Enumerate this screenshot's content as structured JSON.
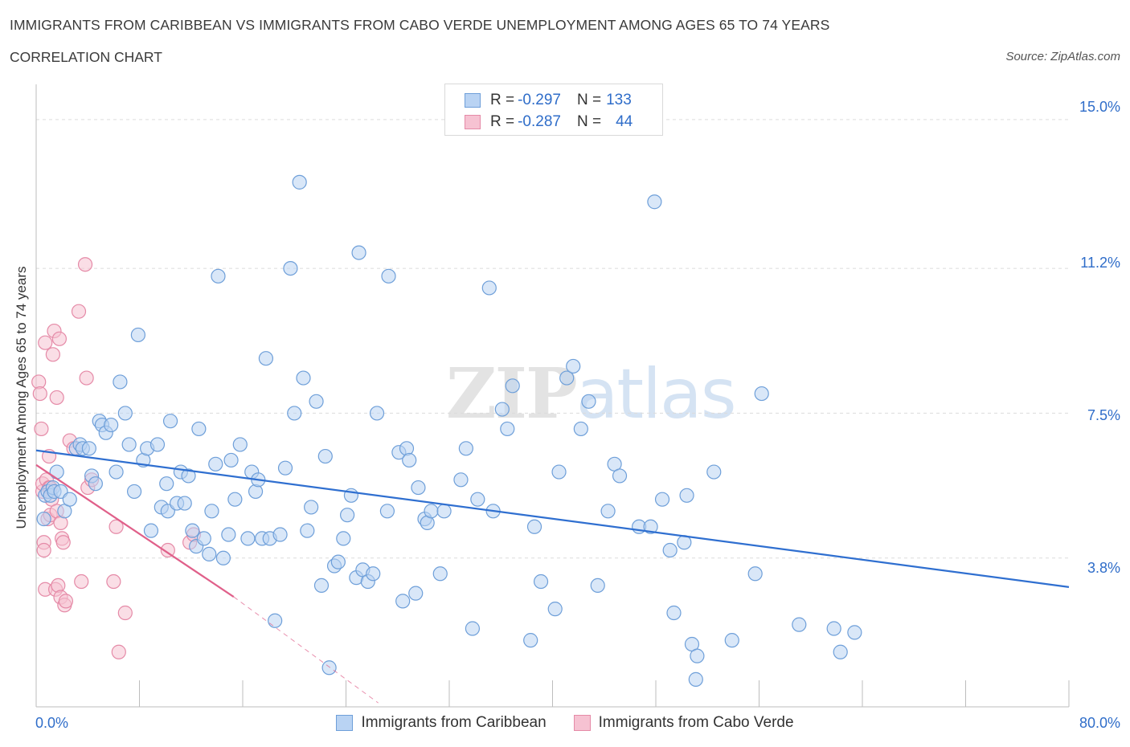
{
  "title": "IMMIGRANTS FROM CARIBBEAN VS IMMIGRANTS FROM CABO VERDE UNEMPLOYMENT AMONG AGES 65 TO 74 YEARS",
  "subtitle": "CORRELATION CHART",
  "source": "Source: ZipAtlas.com",
  "watermark": {
    "zip": "ZIP",
    "atlas": "atlas"
  },
  "legend": {
    "rows": [
      {
        "r_label": "R =",
        "r_value": "-0.297",
        "n_label": "N =",
        "n_value": "133"
      },
      {
        "r_label": "R =",
        "r_value": "-0.287",
        "n_label": "N =",
        "n_value": "44"
      }
    ]
  },
  "colors": {
    "caribbean_fill": "#b9d3f3",
    "caribbean_stroke": "#6e9fd9",
    "caribbean_line": "#2f6fd0",
    "caboverde_fill": "#f6c2d2",
    "caboverde_stroke": "#e58aa7",
    "caboverde_line": "#e0608a",
    "tick_text": "#2f6dc9",
    "grid": "#dcdcdc"
  },
  "chart_data": {
    "type": "scatter",
    "title": "IMMIGRANTS FROM CARIBBEAN VS IMMIGRANTS FROM CABO VERDE UNEMPLOYMENT AMONG AGES 65 TO 74 YEARS",
    "subtitle": "CORRELATION CHART",
    "xlabel": "",
    "ylabel": "Unemployment Among Ages 65 to 74 years",
    "xlim": [
      0,
      80
    ],
    "ylim": [
      0,
      15.9
    ],
    "x_tick_labels": [
      "0.0%",
      "80.0%"
    ],
    "y_ticks": [
      3.8,
      7.5,
      11.2,
      15.0
    ],
    "y_tick_labels": [
      "3.8%",
      "7.5%",
      "11.2%",
      "15.0%"
    ],
    "grid": true,
    "legend_position": "bottom-center",
    "series": [
      {
        "name": "Immigrants from Caribbean",
        "R": -0.297,
        "N": 133,
        "trend": {
          "x": [
            0,
            80
          ],
          "y": [
            6.55,
            3.06
          ]
        },
        "points": [
          [
            0.6,
            4.8
          ],
          [
            0.7,
            5.4
          ],
          [
            0.9,
            5.5
          ],
          [
            1.1,
            5.4
          ],
          [
            1.3,
            5.6
          ],
          [
            1.4,
            5.5
          ],
          [
            1.6,
            6.0
          ],
          [
            1.9,
            5.5
          ],
          [
            2.2,
            5.0
          ],
          [
            2.6,
            5.3
          ],
          [
            3.1,
            6.6
          ],
          [
            3.4,
            6.7
          ],
          [
            3.6,
            6.6
          ],
          [
            4.1,
            6.6
          ],
          [
            4.3,
            5.9
          ],
          [
            4.6,
            5.7
          ],
          [
            4.9,
            7.3
          ],
          [
            5.1,
            7.2
          ],
          [
            5.4,
            7.0
          ],
          [
            5.8,
            7.2
          ],
          [
            6.2,
            6.0
          ],
          [
            6.5,
            8.3
          ],
          [
            6.9,
            7.5
          ],
          [
            7.2,
            6.7
          ],
          [
            7.6,
            5.5
          ],
          [
            7.9,
            9.5
          ],
          [
            8.3,
            6.3
          ],
          [
            8.6,
            6.6
          ],
          [
            8.9,
            4.5
          ],
          [
            9.4,
            6.7
          ],
          [
            9.7,
            5.1
          ],
          [
            10.1,
            5.7
          ],
          [
            10.2,
            5.0
          ],
          [
            10.4,
            7.3
          ],
          [
            10.9,
            5.2
          ],
          [
            11.2,
            6.0
          ],
          [
            11.5,
            5.2
          ],
          [
            11.8,
            5.9
          ],
          [
            12.1,
            4.5
          ],
          [
            12.4,
            4.1
          ],
          [
            12.6,
            7.1
          ],
          [
            13.0,
            4.3
          ],
          [
            13.4,
            3.9
          ],
          [
            13.6,
            5.0
          ],
          [
            13.9,
            6.2
          ],
          [
            14.1,
            11.0
          ],
          [
            14.5,
            3.8
          ],
          [
            14.9,
            4.4
          ],
          [
            15.1,
            6.3
          ],
          [
            15.4,
            5.3
          ],
          [
            15.8,
            6.7
          ],
          [
            16.4,
            4.3
          ],
          [
            16.7,
            6.0
          ],
          [
            17.0,
            5.5
          ],
          [
            17.2,
            5.8
          ],
          [
            17.5,
            4.3
          ],
          [
            17.8,
            8.9
          ],
          [
            18.1,
            4.3
          ],
          [
            18.5,
            2.2
          ],
          [
            18.9,
            4.4
          ],
          [
            19.3,
            6.1
          ],
          [
            19.7,
            11.2
          ],
          [
            20.0,
            7.5
          ],
          [
            20.4,
            13.4
          ],
          [
            20.7,
            8.4
          ],
          [
            21.0,
            4.5
          ],
          [
            21.3,
            5.1
          ],
          [
            21.7,
            7.8
          ],
          [
            22.1,
            3.1
          ],
          [
            22.4,
            6.4
          ],
          [
            22.7,
            1.0
          ],
          [
            23.1,
            3.6
          ],
          [
            23.4,
            3.7
          ],
          [
            23.8,
            4.3
          ],
          [
            24.1,
            4.9
          ],
          [
            24.4,
            5.4
          ],
          [
            24.8,
            3.3
          ],
          [
            25.0,
            11.6
          ],
          [
            25.3,
            3.5
          ],
          [
            25.7,
            3.2
          ],
          [
            26.1,
            3.4
          ],
          [
            26.4,
            7.5
          ],
          [
            27.2,
            5.0
          ],
          [
            27.3,
            11.0
          ],
          [
            28.1,
            6.5
          ],
          [
            28.4,
            2.7
          ],
          [
            28.7,
            6.6
          ],
          [
            28.9,
            6.3
          ],
          [
            29.4,
            2.9
          ],
          [
            29.6,
            5.6
          ],
          [
            30.1,
            4.8
          ],
          [
            30.3,
            4.7
          ],
          [
            30.6,
            5.0
          ],
          [
            31.3,
            3.4
          ],
          [
            31.6,
            5.0
          ],
          [
            32.9,
            5.8
          ],
          [
            33.3,
            6.6
          ],
          [
            33.8,
            2.0
          ],
          [
            34.2,
            5.3
          ],
          [
            35.1,
            10.7
          ],
          [
            35.4,
            5.0
          ],
          [
            36.1,
            7.6
          ],
          [
            36.9,
            8.2
          ],
          [
            36.5,
            7.1
          ],
          [
            38.6,
            4.6
          ],
          [
            38.3,
            1.7
          ],
          [
            39.1,
            3.2
          ],
          [
            40.2,
            2.5
          ],
          [
            40.5,
            6.0
          ],
          [
            41.1,
            8.4
          ],
          [
            41.6,
            8.7
          ],
          [
            42.2,
            7.1
          ],
          [
            42.8,
            7.8
          ],
          [
            43.5,
            3.1
          ],
          [
            44.3,
            5.0
          ],
          [
            44.8,
            6.2
          ],
          [
            45.2,
            5.9
          ],
          [
            46.7,
            4.6
          ],
          [
            47.6,
            4.6
          ],
          [
            47.9,
            12.9
          ],
          [
            48.5,
            5.3
          ],
          [
            49.1,
            4.0
          ],
          [
            49.4,
            2.4
          ],
          [
            50.2,
            4.2
          ],
          [
            50.4,
            5.4
          ],
          [
            50.8,
            1.6
          ],
          [
            51.1,
            0.7
          ],
          [
            51.2,
            1.3
          ],
          [
            52.5,
            6.0
          ],
          [
            53.9,
            1.7
          ],
          [
            55.7,
            3.4
          ],
          [
            56.2,
            8.0
          ],
          [
            59.1,
            2.1
          ],
          [
            61.8,
            2.0
          ],
          [
            62.3,
            1.4
          ],
          [
            63.4,
            1.9
          ]
        ]
      },
      {
        "name": "Immigrants from Cabo Verde",
        "R": -0.287,
        "N": 44,
        "trend": {
          "x": [
            0,
            15.3
          ],
          "y": [
            6.18,
            2.81
          ]
        },
        "trend_extension": {
          "x": [
            15.3,
            26.5
          ],
          "y": [
            2.81,
            0.1
          ]
        },
        "points": [
          [
            0.2,
            8.3
          ],
          [
            0.3,
            8.0
          ],
          [
            0.4,
            7.1
          ],
          [
            0.5,
            5.5
          ],
          [
            0.5,
            5.7
          ],
          [
            0.6,
            4.2
          ],
          [
            0.6,
            4.0
          ],
          [
            0.7,
            9.3
          ],
          [
            0.7,
            3.0
          ],
          [
            0.8,
            5.8
          ],
          [
            0.9,
            4.8
          ],
          [
            1.0,
            6.4
          ],
          [
            1.0,
            5.6
          ],
          [
            1.1,
            4.9
          ],
          [
            1.1,
            5.6
          ],
          [
            1.2,
            5.3
          ],
          [
            1.3,
            9.0
          ],
          [
            1.4,
            9.6
          ],
          [
            1.5,
            3.0
          ],
          [
            1.6,
            7.9
          ],
          [
            1.6,
            5.0
          ],
          [
            1.7,
            3.1
          ],
          [
            1.8,
            9.4
          ],
          [
            1.9,
            4.7
          ],
          [
            1.9,
            2.8
          ],
          [
            2.0,
            4.3
          ],
          [
            2.1,
            4.2
          ],
          [
            2.2,
            2.6
          ],
          [
            2.3,
            2.7
          ],
          [
            2.6,
            6.8
          ],
          [
            2.9,
            6.6
          ],
          [
            3.3,
            10.1
          ],
          [
            3.5,
            3.2
          ],
          [
            3.8,
            11.3
          ],
          [
            3.9,
            8.4
          ],
          [
            4.0,
            5.6
          ],
          [
            4.3,
            5.8
          ],
          [
            6.0,
            3.2
          ],
          [
            6.2,
            4.6
          ],
          [
            6.4,
            1.4
          ],
          [
            6.9,
            2.4
          ],
          [
            10.2,
            4.0
          ],
          [
            11.9,
            4.2
          ],
          [
            12.2,
            4.4
          ]
        ]
      }
    ]
  },
  "bottom_legend": [
    "Immigrants from Caribbean",
    "Immigrants from Cabo Verde"
  ]
}
